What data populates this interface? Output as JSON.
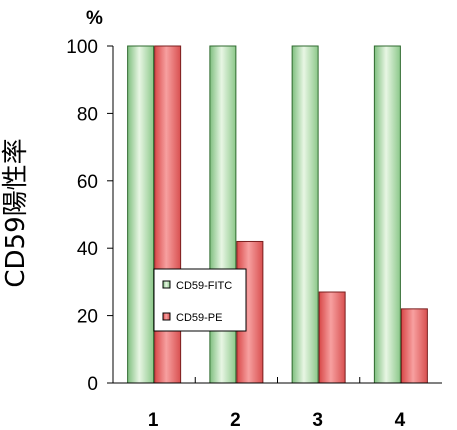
{
  "chart_data": {
    "type": "bar",
    "title": "",
    "xlabel": "",
    "ylabel": "CD59陽性率",
    "y_unit": "%",
    "ylim": [
      0,
      100
    ],
    "yticks": [
      0,
      20,
      40,
      60,
      80,
      100
    ],
    "grid": false,
    "legend_position": "left-middle",
    "categories": [
      "1",
      "2",
      "3",
      "4"
    ],
    "series": [
      {
        "name": "CD59-FITC",
        "values": [
          100,
          100,
          100,
          100
        ],
        "color": "#c6e6c0",
        "edge_color": "#2f6a2f"
      },
      {
        "name": "CD59-PE",
        "values": [
          100,
          42,
          27,
          22
        ],
        "color": "#f07070",
        "edge_color": "#7a1f1f"
      }
    ]
  }
}
